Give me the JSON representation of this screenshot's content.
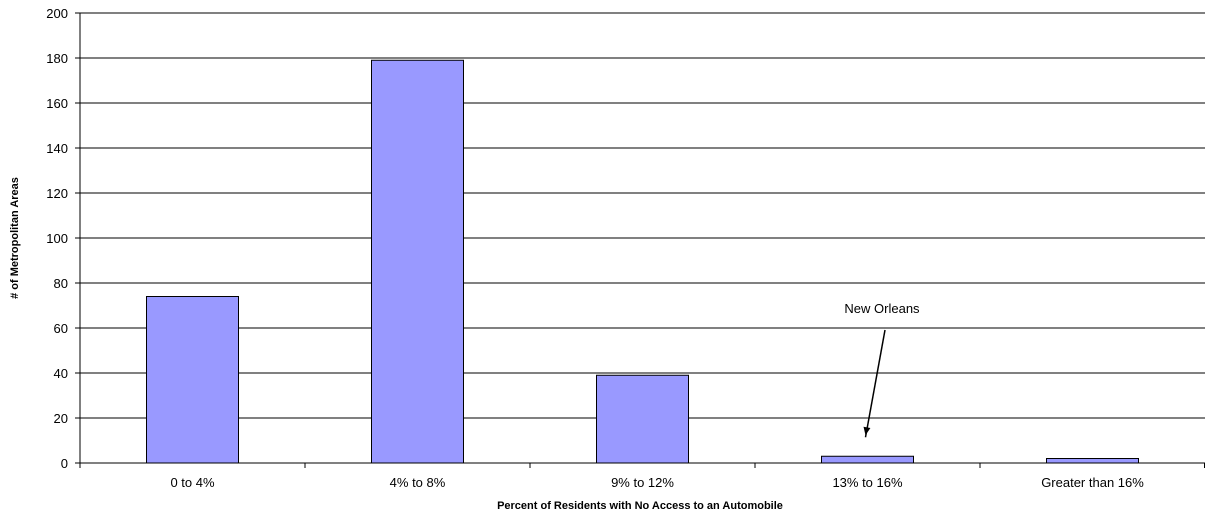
{
  "chart_data": {
    "type": "bar",
    "title": "",
    "xlabel": "Percent of Residents with No Access to an Automobile",
    "ylabel": "# of Metropolitan Areas",
    "categories": [
      "0 to 4%",
      "4% to 8%",
      "9% to 12%",
      "13% to 16%",
      "Greater than 16%"
    ],
    "values": [
      74,
      179,
      39,
      3,
      2
    ],
    "ylim": [
      0,
      200
    ],
    "yticks": [
      0,
      20,
      40,
      60,
      80,
      100,
      120,
      140,
      160,
      180,
      200
    ],
    "grid": true,
    "legend": "none",
    "bar_color": "#9999ff",
    "annotations": [
      {
        "text": "New Orleans",
        "points_to_category": "13% to 16%",
        "arrow": true
      }
    ]
  }
}
